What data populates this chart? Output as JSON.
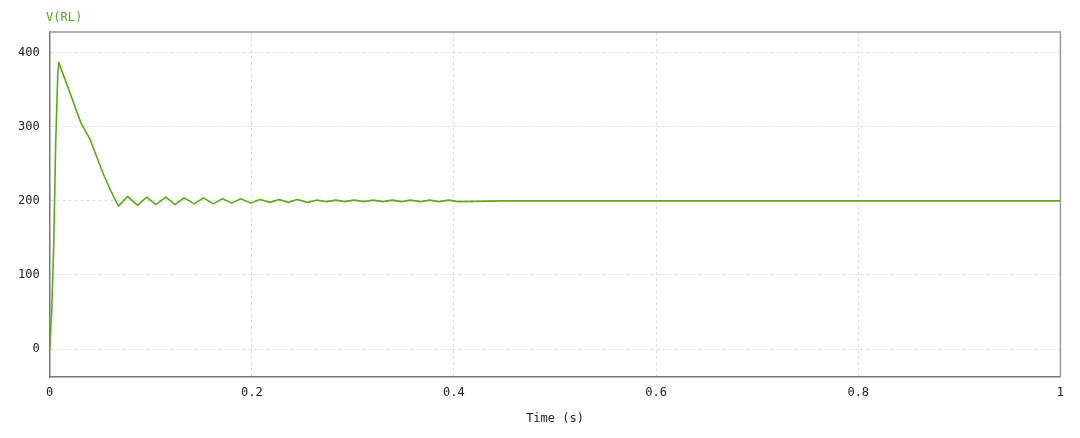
{
  "chart_data": {
    "type": "line",
    "xlabel": "Time (s)",
    "xlim": [
      0,
      1
    ],
    "xticks": [
      0,
      0.2,
      0.4,
      0.6,
      0.8,
      1
    ],
    "ylim": [
      -38,
      428
    ],
    "yticks": [
      0,
      100,
      200,
      300,
      400
    ],
    "grid": true,
    "legend": false,
    "marker": "none",
    "line_style": "solid",
    "series": [
      {
        "name": "V(RL)",
        "color": "#5aaa1e",
        "x": [
          0,
          0.002,
          0.004,
          0.006,
          0.008,
          0.009,
          0.02,
          0.031,
          0.04,
          0.0535,
          0.06,
          0.068,
          0.077,
          0.087,
          0.096,
          0.105,
          0.115,
          0.124,
          0.133,
          0.143,
          0.152,
          0.162,
          0.171,
          0.18,
          0.189,
          0.199,
          0.208,
          0.218,
          0.227,
          0.236,
          0.245,
          0.255,
          0.264,
          0.274,
          0.283,
          0.292,
          0.301,
          0.311,
          0.32,
          0.33,
          0.339,
          0.348,
          0.357,
          0.367,
          0.376,
          0.385,
          0.395,
          0.404,
          0.45,
          0.5,
          0.56,
          0.6,
          0.8,
          1
        ],
        "values": [
          0,
          50,
          140,
          280,
          370,
          387,
          346,
          305,
          283,
          235,
          215,
          193,
          206,
          194,
          205,
          195,
          205,
          195,
          204,
          196,
          204,
          196,
          203,
          197,
          203,
          197,
          202,
          198,
          202,
          198,
          202,
          198,
          201,
          199,
          201,
          199,
          201,
          199,
          201,
          199,
          201,
          199,
          201,
          199,
          201,
          199,
          201,
          199,
          200,
          200,
          200,
          200,
          200,
          200
        ]
      }
    ]
  }
}
